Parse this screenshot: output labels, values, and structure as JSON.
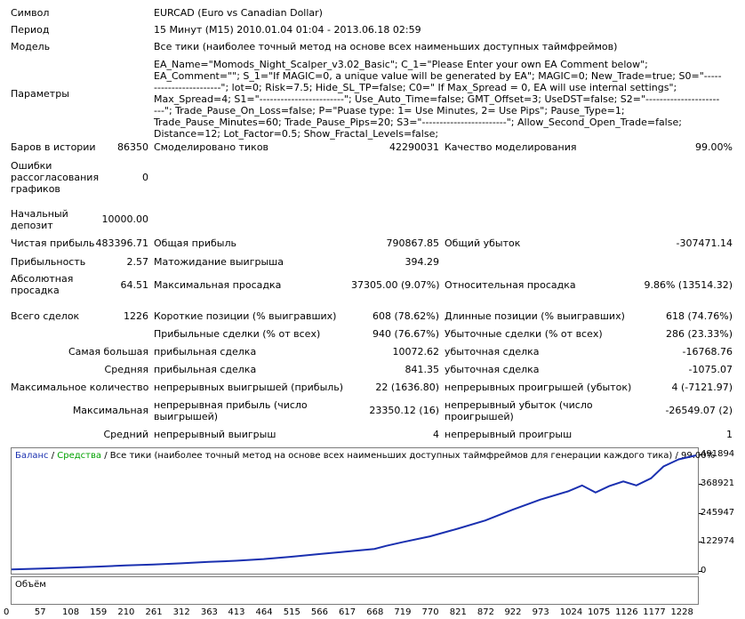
{
  "report": {
    "symbol_label": "Символ",
    "symbol_value": "EURCAD (Euro vs Canadian Dollar)",
    "period_label": "Период",
    "period_value": "15 Минут (M15) 2010.01.04 01:04 - 2013.06.18 02:59",
    "model_label": "Модель",
    "model_value": "Все тики (наиболее точный метод на основе всех наименьших доступных таймфреймов)",
    "params_label": "Параметры",
    "params_value": "EA_Name=\"Momods_Night_Scalper_v3.02_Basic\"; C_1=\"Please Enter your own EA Comment below\"; EA_Comment=\"\"; S_1=\"If MAGIC=0, a unique value will be generated by EA\"; MAGIC=0; New_Trade=true; S0=\"------------------------\"; lot=0; Risk=7.5; Hide_SL_TP=false; C0=\" If Max_Spread = 0, EA will use internal settings\"; Max_Spread=4; S1=\"------------------------\"; Use_Auto_Time=false; GMT_Offset=3; UseDST=false; S2=\"------------------------\"; Trade_Pause_On_Loss=false; P=\"Puase type: 1= Use Minutes, 2= Use Pips\"; Pause_Type=1; Trade_Pause_Minutes=60; Trade_Pause_Pips=20; S3=\"------------------------\"; Allow_Second_Open_Trade=false; Distance=12; Lot_Factor=0.5; Show_Fractal_Levels=false;",
    "bars_label": "Баров в истории",
    "bars_value": "86350",
    "ticks_label": "Смоделировано тиков",
    "ticks_value": "42290031",
    "quality_label": "Качество моделирования",
    "quality_value": "99.00%",
    "errors_label": "Ошибки рассогласования графиков",
    "errors_value": "0",
    "deposit_label": "Начальный депозит",
    "deposit_value": "10000.00",
    "net_profit_label": "Чистая прибыль",
    "net_profit_value": "483396.71",
    "gross_profit_label": "Общая прибыль",
    "gross_profit_value": "790867.85",
    "gross_loss_label": "Общий убыток",
    "gross_loss_value": "-307471.14",
    "profit_factor_label": "Прибыльность",
    "profit_factor_value": "2.57",
    "expected_payoff_label": "Матожидание выигрыша",
    "expected_payoff_value": "394.29",
    "abs_dd_label": "Абсолютная просадка",
    "abs_dd_value": "64.51",
    "max_dd_label": "Максимальная просадка",
    "max_dd_value": "37305.00 (9.07%)",
    "rel_dd_label": "Относительная просадка",
    "rel_dd_value": "9.86% (13514.32)",
    "total_trades_label": "Всего сделок",
    "total_trades_value": "1226",
    "short_label": "Короткие позиции (% выигравших)",
    "short_value": "608 (78.62%)",
    "long_label": "Длинные позиции (% выигравших)",
    "long_value": "618 (74.76%)",
    "profit_trades_label": "Прибыльные сделки (% от всех)",
    "profit_trades_value": "940 (76.67%)",
    "loss_trades_label": "Убыточные сделки (% от всех)",
    "loss_trades_value": "286 (23.33%)",
    "largest_label": "Самая большая",
    "largest_profit_label": "прибыльная сделка",
    "largest_profit_value": "10072.62",
    "largest_loss_label": "убыточная сделка",
    "largest_loss_value": "-16768.76",
    "average_label": "Средняя",
    "average_profit_label": "прибыльная сделка",
    "average_profit_value": "841.35",
    "average_loss_label": "убыточная сделка",
    "average_loss_value": "-1075.07",
    "max_count_label": "Максимальное количество",
    "max_consec_wins_label": "непрерывных выигрышей (прибыль)",
    "max_consec_wins_value": "22 (1636.80)",
    "max_consec_losses_label": "непрерывных проигрышей (убыток)",
    "max_consec_losses_value": "4 (-7121.97)",
    "maximal_label": "Максимальная",
    "maximal_profit_label": "непрерывная прибыль (число выигрышей)",
    "maximal_profit_value": "23350.12 (16)",
    "maximal_loss_label": "непрерывный убыток (число проигрышей)",
    "maximal_loss_value": "-26549.07 (2)",
    "avg_consec_label": "Средний",
    "avg_consec_wins_label": "непрерывный выигрыш",
    "avg_consec_wins_value": "4",
    "avg_consec_losses_label": "непрерывный проигрыш",
    "avg_consec_losses_value": "1"
  },
  "chart": {
    "legend_balance": "Баланс",
    "legend_sep1": " / ",
    "legend_equity": "Средства",
    "legend_rest": " / Все тики (наиболее точный метод на основе всех наименьших доступных таймфреймов для генерации каждого тика) / 99.00%",
    "volume_label": "Объём",
    "colors": {
      "balance": "#1a30b0",
      "equity": "#00a000",
      "legend_balance": "#1a30b0"
    }
  },
  "chart_data": {
    "type": "line",
    "series": [
      {
        "name": "Баланс",
        "x": [
          0,
          57,
          108,
          159,
          210,
          261,
          312,
          363,
          413,
          464,
          515,
          566,
          617,
          668,
          690,
          719,
          770,
          821,
          872,
          922,
          973,
          1024,
          1050,
          1075,
          1100,
          1126,
          1150,
          1177,
          1200,
          1228,
          1260
        ],
        "values": [
          10000,
          14000,
          18000,
          22000,
          27000,
          31000,
          36000,
          42000,
          47000,
          54000,
          64000,
          75000,
          86000,
          97000,
          110000,
          125000,
          150000,
          182000,
          217000,
          262000,
          305000,
          340000,
          365000,
          335000,
          362000,
          382000,
          365000,
          395000,
          445000,
          475000,
          491894
        ]
      }
    ],
    "x_ticks": [
      0,
      57,
      108,
      159,
      210,
      261,
      312,
      363,
      413,
      464,
      515,
      566,
      617,
      668,
      719,
      770,
      821,
      872,
      922,
      973,
      1024,
      1075,
      1126,
      1177,
      1228
    ],
    "y_ticks": [
      0,
      122974,
      245947,
      368921,
      491894
    ],
    "xlim": [
      0,
      1260
    ],
    "ylim": [
      0,
      491894
    ]
  }
}
